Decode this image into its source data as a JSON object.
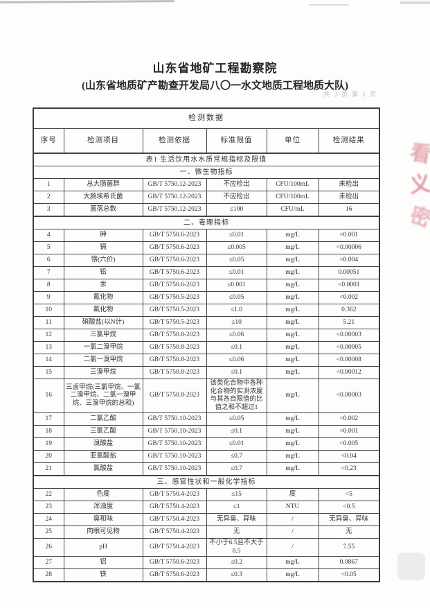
{
  "page": {
    "org_line1": "山东省地矿工程勘察院",
    "org_line2": "(山东省地质矿产勘查开发局八〇一水文地质工程地质大队)",
    "page_note": "共 3 页 第 2 页"
  },
  "table": {
    "title": "检测数据",
    "columns": [
      "序号",
      "检测项目",
      "检测依据",
      "标准限值",
      "单位",
      "检测结果"
    ],
    "rows": [
      {
        "type": "caption",
        "label": "表1 生活饮用水水质常规指标及限值"
      },
      {
        "type": "section",
        "label": "一、微生物指标"
      },
      {
        "type": "data",
        "no": "1",
        "item": "总大肠菌群",
        "basis": "GB/T 5750.12-2023",
        "limit": "不应检出",
        "unit": "CFU/100mL",
        "result": "未检出"
      },
      {
        "type": "data",
        "no": "2",
        "item": "大肠埃希氏菌",
        "basis": "GB/T 5750.12-2023",
        "limit": "不应检出",
        "unit": "CFU/100mL",
        "result": "未检出"
      },
      {
        "type": "data",
        "no": "3",
        "item": "菌落总数",
        "basis": "GB/T 5750.12-2023",
        "limit": "≤100",
        "unit": "CFU/mL",
        "result": "16",
        "thick_bottom": true
      },
      {
        "type": "section",
        "label": "二、毒理指标"
      },
      {
        "type": "data",
        "no": "4",
        "item": "砷",
        "basis": "GB/T 5750.6-2023",
        "limit": "≤0.01",
        "unit": "mg/L",
        "result": "<0.001"
      },
      {
        "type": "data",
        "no": "5",
        "item": "镉",
        "basis": "GB/T 5750.6-2023",
        "limit": "≤0.005",
        "unit": "mg/L",
        "result": "<0.00006"
      },
      {
        "type": "data",
        "no": "6",
        "item": "铬(六价)",
        "basis": "GB/T 5750.6-2023",
        "limit": "≤0.05",
        "unit": "mg/L",
        "result": "<0.004"
      },
      {
        "type": "data",
        "no": "7",
        "item": "铅",
        "basis": "GB/T 5750.6-2023",
        "limit": "≤0.01",
        "unit": "mg/L",
        "result": "0.00051"
      },
      {
        "type": "data",
        "no": "8",
        "item": "汞",
        "basis": "GB/T 5750.6-2023",
        "limit": "≤0.001",
        "unit": "mg/L",
        "result": "<0.0001"
      },
      {
        "type": "data",
        "no": "9",
        "item": "氰化物",
        "basis": "GB/T 5750.5-2023",
        "limit": "≤0.05",
        "unit": "mg/L",
        "result": "<0.002"
      },
      {
        "type": "data",
        "no": "10",
        "item": "氟化物",
        "basis": "GB/T 5750.5-2023",
        "limit": "≤1.0",
        "unit": "mg/L",
        "result": "0.362"
      },
      {
        "type": "data",
        "no": "11",
        "item": "硝酸盐(以N计)",
        "basis": "GB/T 5750.5-2023",
        "limit": "≤10",
        "unit": "mg/L",
        "result": "5.21"
      },
      {
        "type": "data",
        "no": "12",
        "item": "三氯甲烷",
        "basis": "GB/T 5750.8-2023",
        "limit": "≤0.06",
        "unit": "mg/L",
        "result": "<0.00003"
      },
      {
        "type": "data",
        "no": "13",
        "item": "一氯二溴甲烷",
        "basis": "GB/T 5750.8-2023",
        "limit": "≤0.1",
        "unit": "mg/L",
        "result": "<0.00005"
      },
      {
        "type": "data",
        "no": "14",
        "item": "二氯一溴甲烷",
        "basis": "GB/T 5750.8-2023",
        "limit": "≤0.06",
        "unit": "mg/L",
        "result": "<0.00008"
      },
      {
        "type": "data",
        "no": "15",
        "item": "三溴甲烷",
        "basis": "GB/T 5750.8-2023",
        "limit": "≤0.1",
        "unit": "mg/L",
        "result": "<0.00012"
      },
      {
        "type": "data",
        "no": "16",
        "item": "三卤甲烷(三氯甲烷、一氯二溴甲烷、二氯一溴甲烷、三溴甲烷的总和)",
        "basis": "GB/T 5750.8-2023",
        "limit": "该类化合物中各种化合物的实测浓度与其各自限值的比值之和不超过1",
        "unit": "mg/L",
        "result": "<0.00003"
      },
      {
        "type": "data",
        "no": "17",
        "item": "二氯乙酸",
        "basis": "GB/T 5750.10-2023",
        "limit": "≤0.05",
        "unit": "mg/L",
        "result": "<0.002"
      },
      {
        "type": "data",
        "no": "18",
        "item": "三氯乙酸",
        "basis": "GB/T 5750.10-2023",
        "limit": "≤0.1",
        "unit": "mg/L",
        "result": "<0.001"
      },
      {
        "type": "data",
        "no": "19",
        "item": "溴酸盐",
        "basis": "GB/T 5750.10-2023",
        "limit": "≤0.01",
        "unit": "mg/L",
        "result": "<0.005"
      },
      {
        "type": "data",
        "no": "20",
        "item": "亚氯酸盐",
        "basis": "GB/T 5750.10-2023",
        "limit": "≤0.7",
        "unit": "mg/L",
        "result": "<0.04"
      },
      {
        "type": "data",
        "no": "21",
        "item": "氯酸盐",
        "basis": "GB/T 5750.10-2023",
        "limit": "≤0.7",
        "unit": "mg/L",
        "result": "<0.23",
        "thick_bottom": true
      },
      {
        "type": "section",
        "label": "三、感官性状和一般化学指标"
      },
      {
        "type": "data",
        "no": "22",
        "item": "色度",
        "basis": "GB/T 5750.4-2023",
        "limit": "≤15",
        "unit": "度",
        "result": "<5"
      },
      {
        "type": "data",
        "no": "23",
        "item": "浑浊度",
        "basis": "GB/T 5750.4-2023",
        "limit": "≤1",
        "unit": "NTU",
        "result": "<0.5"
      },
      {
        "type": "data",
        "no": "24",
        "item": "臭和味",
        "basis": "GB/T 5750.4-2023",
        "limit": "无异臭、异味",
        "unit": "/",
        "result": "无异臭、异味"
      },
      {
        "type": "data",
        "no": "25",
        "item": "肉眼可见物",
        "basis": "GB/T 5750.4-2023",
        "limit": "无",
        "unit": "/",
        "result": "无"
      },
      {
        "type": "data",
        "no": "26",
        "item": "pH",
        "basis": "GB/T 5750.4-2023",
        "limit": "不小于6.5且不大于8.5",
        "unit": "/",
        "result": "7.55"
      },
      {
        "type": "data",
        "no": "27",
        "item": "铝",
        "basis": "GB/T 5750.6-2023",
        "limit": "≤0.2",
        "unit": "mg/L",
        "result": "0.0867"
      },
      {
        "type": "data",
        "no": "28",
        "item": "铁",
        "basis": "GB/T 5750.6-2023",
        "limit": "≤0.3",
        "unit": "mg/L",
        "result": "<0.05"
      }
    ]
  },
  "stamp": {
    "color": "#d0556b",
    "fragments": [
      "看",
      "义",
      "密"
    ]
  }
}
